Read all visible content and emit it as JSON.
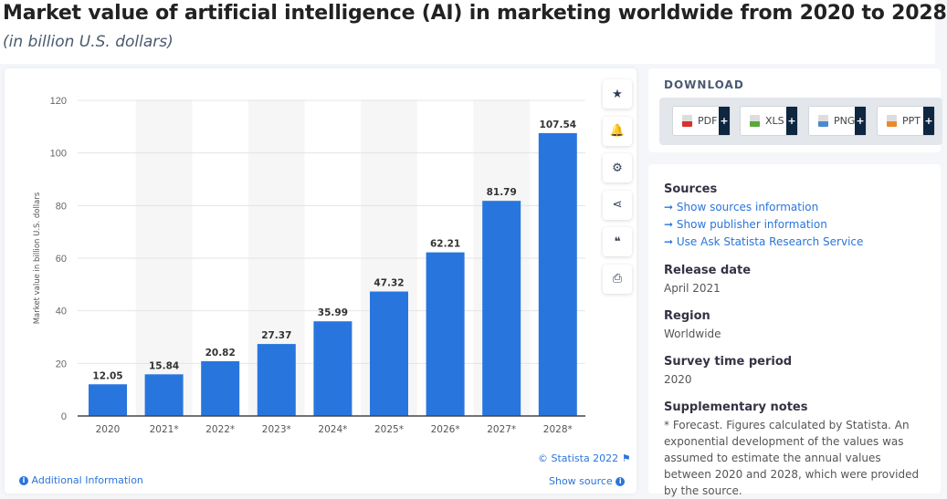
{
  "header": {
    "title": "Market value of artificial intelligence (AI) in marketing worldwide from 2020 to 2028",
    "subtitle": "(in billion U.S. dollars)"
  },
  "chart_data": {
    "type": "bar",
    "categories": [
      "2020",
      "2021*",
      "2022*",
      "2023*",
      "2024*",
      "2025*",
      "2026*",
      "2027*",
      "2028*"
    ],
    "values": [
      12.05,
      15.84,
      20.82,
      27.37,
      35.99,
      47.32,
      62.21,
      81.79,
      107.54
    ],
    "ylabel": "Market value in billion U.S. dollars",
    "ylim": [
      0,
      120
    ],
    "yticks": [
      0,
      20,
      40,
      60,
      80,
      100,
      120
    ],
    "bar_color": "#2876dd",
    "grid": true,
    "data_labels": true
  },
  "toolbar": [
    {
      "icon": "star-icon",
      "glyph": "★"
    },
    {
      "icon": "bell-icon",
      "glyph": "🔔"
    },
    {
      "icon": "gear-icon",
      "glyph": "⚙"
    },
    {
      "icon": "share-icon",
      "glyph": "⋖"
    },
    {
      "icon": "quote-icon",
      "glyph": "❝"
    },
    {
      "icon": "print-icon",
      "glyph": "⎙"
    }
  ],
  "footer": {
    "copyright": "© Statista 2022",
    "additional": "Additional Information",
    "show_source": "Show source"
  },
  "download": {
    "title": "DOWNLOAD",
    "buttons": [
      {
        "label": "PDF",
        "color": "#d8322b"
      },
      {
        "label": "XLS",
        "color": "#5aa83b"
      },
      {
        "label": "PNG",
        "color": "#4a8ad0"
      },
      {
        "label": "PPT",
        "color": "#ea8a2c"
      }
    ],
    "plus": "+"
  },
  "info": {
    "sources_title": "Sources",
    "links": [
      "Show sources information",
      "Show publisher information",
      "Use Ask Statista Research Service"
    ],
    "release_title": "Release date",
    "release": "April 2021",
    "region_title": "Region",
    "region": "Worldwide",
    "survey_title": "Survey time period",
    "survey": "2020",
    "notes_title": "Supplementary notes",
    "notes": "* Forecast. Figures calculated by Statista. An exponential development of the values was assumed to estimate the annual values between 2020 and 2028, which were provided by the source."
  }
}
